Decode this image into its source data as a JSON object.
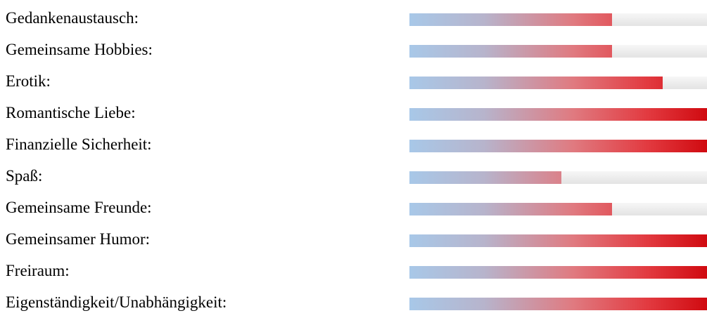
{
  "chart_data": {
    "type": "bar",
    "orientation": "horizontal",
    "categories": [
      "Gedankenaustausch:",
      "Gemeinsame Hobbies:",
      "Erotik:",
      "Romantische Liebe:",
      "Finanzielle Sicherheit:",
      "Spaß:",
      "Gemeinsame Freunde:",
      "Gemeinsamer Humor:",
      "Freiraum:",
      "Eigenständigkeit/Unabhängigkeit:"
    ],
    "values": [
      68,
      68,
      85,
      100,
      100,
      51,
      68,
      100,
      100,
      100
    ],
    "xlim": [
      0,
      100
    ],
    "grid": false,
    "legend": "none",
    "colors": {
      "low": "#a8c8e8",
      "mid": "#e07a80",
      "high": "#d00a10",
      "track": "#ececec"
    }
  }
}
